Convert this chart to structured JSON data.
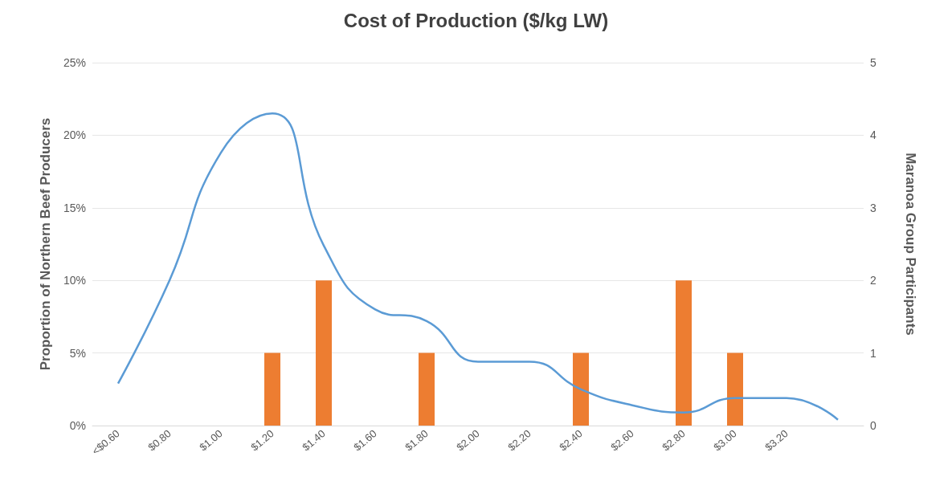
{
  "chart_data": {
    "type": "bar",
    "title": "Cost of Production ($/kg LW)",
    "ylabel": "Proportion of Northern Beef Producers",
    "y2label": "Maranoa Group Participants",
    "categories": [
      "<$0.60",
      "$0.80",
      "$1.00",
      "$1.20",
      "$1.40",
      "$1.60",
      "$1.80",
      "$2.00",
      "$2.20",
      "$2.40",
      "$2.60",
      "$2.80",
      "$3.00",
      "$3.20",
      null
    ],
    "series": [
      {
        "axis": "y2",
        "color": "#ed7d31",
        "values": [
          0,
          0,
          0,
          1,
          2,
          0,
          1,
          0,
          0,
          1,
          0,
          2,
          1,
          0,
          0
        ]
      },
      {
        "type": "line",
        "axis": "y",
        "color": "#5b9bd5",
        "values": [
          2.9,
          10,
          18.8,
          21.5,
          12.4,
          8,
          7.2,
          4.4,
          4.4,
          2.5,
          1.4,
          0.9,
          1.9,
          1.9,
          0.4
        ]
      }
    ],
    "ylim": [
      0,
      25
    ],
    "yticks": [
      {
        "value": 0,
        "label": "0%"
      },
      {
        "value": 5,
        "label": "5%"
      },
      {
        "value": 10,
        "label": "10%"
      },
      {
        "value": 15,
        "label": "15%"
      },
      {
        "value": 20,
        "label": "20%"
      },
      {
        "value": 25,
        "label": "25%"
      }
    ],
    "y2lim": [
      0,
      5
    ],
    "y2ticks": [
      0,
      1,
      2,
      3,
      4,
      5
    ],
    "grid": "y",
    "marker": "none"
  }
}
